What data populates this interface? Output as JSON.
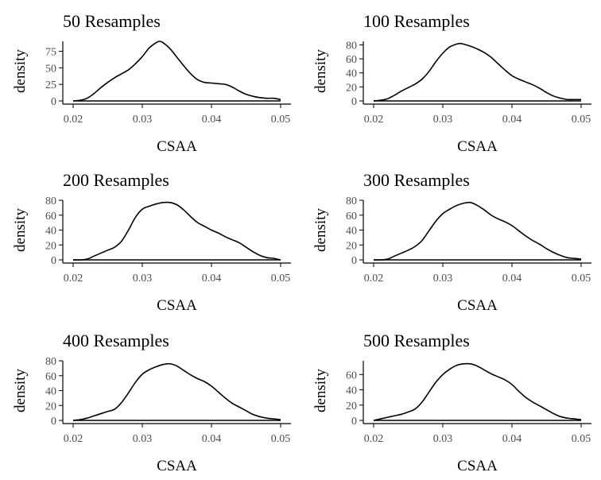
{
  "chart_data": [
    {
      "type": "line",
      "title": "50 Resamples",
      "xlabel": "CSAA",
      "ylabel": "density",
      "xlim": [
        0.02,
        0.05
      ],
      "ylim": [
        0,
        90
      ],
      "xticks": [
        "0.02",
        "0.03",
        "0.04",
        "0.05"
      ],
      "yticks": [
        "0",
        "25",
        "50",
        "75"
      ],
      "ytick_values": [
        0,
        25,
        50,
        75
      ],
      "x": [
        0.02,
        0.021,
        0.022,
        0.023,
        0.024,
        0.025,
        0.026,
        0.027,
        0.028,
        0.029,
        0.03,
        0.031,
        0.032,
        0.0325,
        0.033,
        0.034,
        0.035,
        0.036,
        0.037,
        0.038,
        0.039,
        0.04,
        0.041,
        0.042,
        0.043,
        0.044,
        0.045,
        0.046,
        0.047,
        0.048,
        0.049,
        0.05
      ],
      "y": [
        0,
        1,
        4,
        11,
        20,
        28,
        35,
        41,
        47,
        56,
        67,
        80,
        88,
        90,
        88,
        79,
        66,
        53,
        41,
        32,
        28,
        27,
        26,
        25,
        21,
        15,
        10,
        7,
        5,
        4,
        4,
        2
      ],
      "grid": false
    },
    {
      "type": "line",
      "title": "100 Resamples",
      "xlabel": "CSAA",
      "ylabel": "density",
      "xlim": [
        0.02,
        0.05
      ],
      "ylim": [
        0,
        85
      ],
      "xticks": [
        "0.02",
        "0.03",
        "0.04",
        "0.05"
      ],
      "yticks": [
        "0",
        "20",
        "40",
        "60",
        "80"
      ],
      "ytick_values": [
        0,
        20,
        40,
        60,
        80
      ],
      "x": [
        0.02,
        0.021,
        0.022,
        0.023,
        0.024,
        0.025,
        0.026,
        0.027,
        0.028,
        0.029,
        0.03,
        0.031,
        0.032,
        0.0325,
        0.033,
        0.034,
        0.035,
        0.036,
        0.037,
        0.038,
        0.039,
        0.04,
        0.041,
        0.042,
        0.043,
        0.044,
        0.045,
        0.046,
        0.047,
        0.048,
        0.049,
        0.05
      ],
      "y": [
        0,
        1,
        3,
        8,
        14,
        19,
        24,
        31,
        42,
        56,
        68,
        77,
        81,
        82,
        81,
        78,
        74,
        69,
        62,
        53,
        44,
        36,
        31,
        27,
        23,
        18,
        12,
        7,
        4,
        2,
        2,
        2
      ],
      "grid": false
    },
    {
      "type": "line",
      "title": "200 Resamples",
      "xlabel": "CSAA",
      "ylabel": "density",
      "xlim": [
        0.02,
        0.05
      ],
      "ylim": [
        0,
        80
      ],
      "xticks": [
        "0.02",
        "0.03",
        "0.04",
        "0.05"
      ],
      "yticks": [
        "0",
        "20",
        "40",
        "60",
        "80"
      ],
      "ytick_values": [
        0,
        20,
        40,
        60,
        80
      ],
      "x": [
        0.02,
        0.021,
        0.022,
        0.023,
        0.024,
        0.025,
        0.026,
        0.027,
        0.028,
        0.029,
        0.03,
        0.031,
        0.032,
        0.033,
        0.034,
        0.035,
        0.036,
        0.037,
        0.038,
        0.039,
        0.04,
        0.041,
        0.042,
        0.043,
        0.044,
        0.045,
        0.046,
        0.047,
        0.048,
        0.049,
        0.05
      ],
      "y": [
        0,
        0,
        1,
        5,
        9,
        13,
        17,
        25,
        40,
        57,
        68,
        72,
        75,
        77,
        77,
        74,
        67,
        58,
        50,
        45,
        40,
        36,
        31,
        27,
        23,
        17,
        11,
        6,
        3,
        2,
        0
      ],
      "grid": false
    },
    {
      "type": "line",
      "title": "300 Resamples",
      "xlabel": "CSAA",
      "ylabel": "density",
      "xlim": [
        0.02,
        0.05
      ],
      "ylim": [
        0,
        80
      ],
      "xticks": [
        "0.02",
        "0.03",
        "0.04",
        "0.05"
      ],
      "yticks": [
        "0",
        "20",
        "40",
        "60",
        "80"
      ],
      "ytick_values": [
        0,
        20,
        40,
        60,
        80
      ],
      "x": [
        0.02,
        0.021,
        0.022,
        0.023,
        0.024,
        0.025,
        0.026,
        0.027,
        0.028,
        0.029,
        0.03,
        0.031,
        0.032,
        0.033,
        0.034,
        0.035,
        0.036,
        0.037,
        0.038,
        0.039,
        0.04,
        0.041,
        0.042,
        0.043,
        0.044,
        0.045,
        0.046,
        0.047,
        0.048,
        0.049,
        0.05
      ],
      "y": [
        0,
        0,
        1,
        5,
        9,
        13,
        18,
        26,
        39,
        52,
        62,
        68,
        73,
        76,
        77,
        73,
        67,
        60,
        55,
        51,
        46,
        39,
        32,
        26,
        21,
        15,
        10,
        6,
        3,
        2,
        1
      ],
      "grid": false
    },
    {
      "type": "line",
      "title": "400 Resamples",
      "xlabel": "CSAA",
      "ylabel": "density",
      "xlim": [
        0.02,
        0.05
      ],
      "ylim": [
        0,
        80
      ],
      "xticks": [
        "0.02",
        "0.03",
        "0.04",
        "0.05"
      ],
      "yticks": [
        "0",
        "20",
        "40",
        "60",
        "80"
      ],
      "ytick_values": [
        0,
        20,
        40,
        60,
        80
      ],
      "x": [
        0.02,
        0.021,
        0.022,
        0.023,
        0.024,
        0.025,
        0.026,
        0.027,
        0.028,
        0.029,
        0.03,
        0.031,
        0.032,
        0.033,
        0.034,
        0.035,
        0.036,
        0.037,
        0.038,
        0.039,
        0.04,
        0.041,
        0.042,
        0.043,
        0.044,
        0.045,
        0.046,
        0.047,
        0.048,
        0.049,
        0.05
      ],
      "y": [
        0,
        1,
        3,
        6,
        9,
        12,
        15,
        24,
        37,
        51,
        62,
        68,
        72,
        75,
        76,
        73,
        67,
        61,
        56,
        52,
        46,
        38,
        30,
        23,
        18,
        13,
        8,
        5,
        3,
        2,
        1
      ],
      "grid": false
    },
    {
      "type": "line",
      "title": "500 Resamples",
      "xlabel": "CSAA",
      "ylabel": "density",
      "xlim": [
        0.02,
        0.05
      ],
      "ylim": [
        0,
        78
      ],
      "xticks": [
        "0.02",
        "0.03",
        "0.04",
        "0.05"
      ],
      "yticks": [
        "0",
        "20",
        "40",
        "60"
      ],
      "ytick_values": [
        0,
        20,
        40,
        60
      ],
      "x": [
        0.02,
        0.021,
        0.022,
        0.023,
        0.024,
        0.025,
        0.026,
        0.027,
        0.028,
        0.029,
        0.03,
        0.031,
        0.032,
        0.033,
        0.034,
        0.035,
        0.036,
        0.037,
        0.038,
        0.039,
        0.04,
        0.041,
        0.042,
        0.043,
        0.044,
        0.045,
        0.046,
        0.047,
        0.048,
        0.049,
        0.05
      ],
      "y": [
        0,
        2,
        4,
        6,
        8,
        11,
        15,
        24,
        37,
        50,
        60,
        67,
        72,
        74,
        74,
        71,
        66,
        61,
        57,
        53,
        47,
        38,
        30,
        24,
        19,
        14,
        9,
        5,
        3,
        2,
        1
      ],
      "grid": false
    }
  ]
}
